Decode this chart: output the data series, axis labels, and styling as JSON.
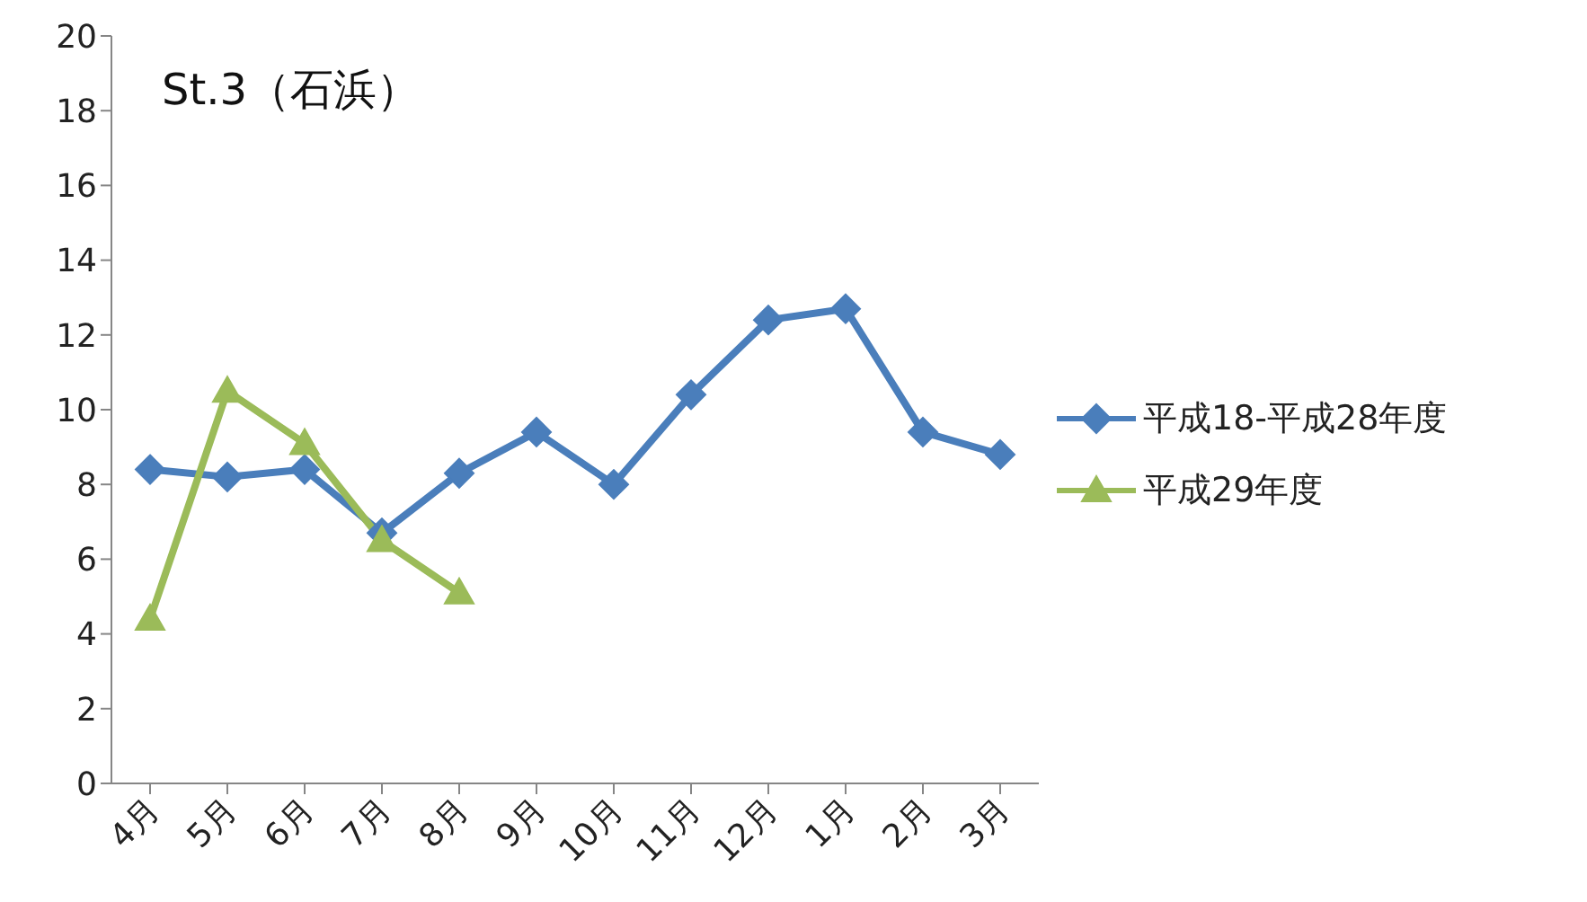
{
  "chart_data": {
    "type": "line",
    "title": "St.3（石浜）",
    "categories": [
      "4月",
      "5月",
      "6月",
      "7月",
      "8月",
      "9月",
      "10月",
      "11月",
      "12月",
      "1月",
      "2月",
      "3月"
    ],
    "series": [
      {
        "name": "平成18-平成28年度",
        "color": "#4a7ebb",
        "marker": "diamond",
        "values": [
          8.4,
          8.2,
          8.4,
          6.7,
          8.3,
          9.4,
          8.0,
          10.4,
          12.4,
          12.7,
          9.4,
          8.8
        ]
      },
      {
        "name": "平成29年度",
        "color": "#9bbb59",
        "marker": "triangle",
        "values": [
          4.4,
          10.5,
          9.1,
          6.5,
          5.1,
          null,
          null,
          null,
          null,
          null,
          null,
          null
        ]
      }
    ],
    "ylim": [
      0,
      20
    ],
    "yticks": [
      0,
      2,
      4,
      6,
      8,
      10,
      12,
      14,
      16,
      18,
      20
    ],
    "grid": false,
    "legend": "right",
    "line_style": "solid"
  }
}
